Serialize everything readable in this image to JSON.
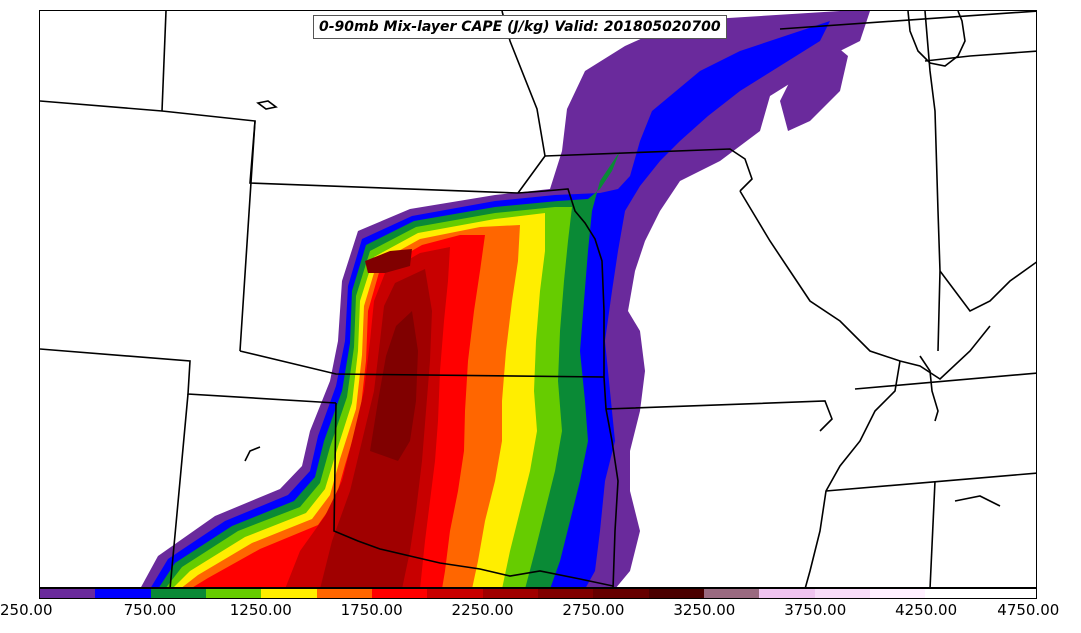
{
  "title": "0-90mb Mix-layer CAPE (J/kg) Valid: 201805020700",
  "colorbar": {
    "min": 250,
    "max": 4750,
    "step": 250,
    "colors": [
      "#6a2a9c",
      "#0000ff",
      "#0a8a36",
      "#66cc00",
      "#ffee00",
      "#ff6600",
      "#ff0000",
      "#c80000",
      "#a00000",
      "#800000",
      "#660000",
      "#4a0000",
      "#9a6a80",
      "#f0c4f0",
      "#f8dcf8",
      "#fff0ff",
      "#ffffff",
      "#ffffff"
    ],
    "tick_labels": [
      "250.00",
      "750.00",
      "1250.00",
      "1750.00",
      "2250.00",
      "2750.00",
      "3250.00",
      "3750.00",
      "4250.00",
      "4750.00"
    ]
  }
}
